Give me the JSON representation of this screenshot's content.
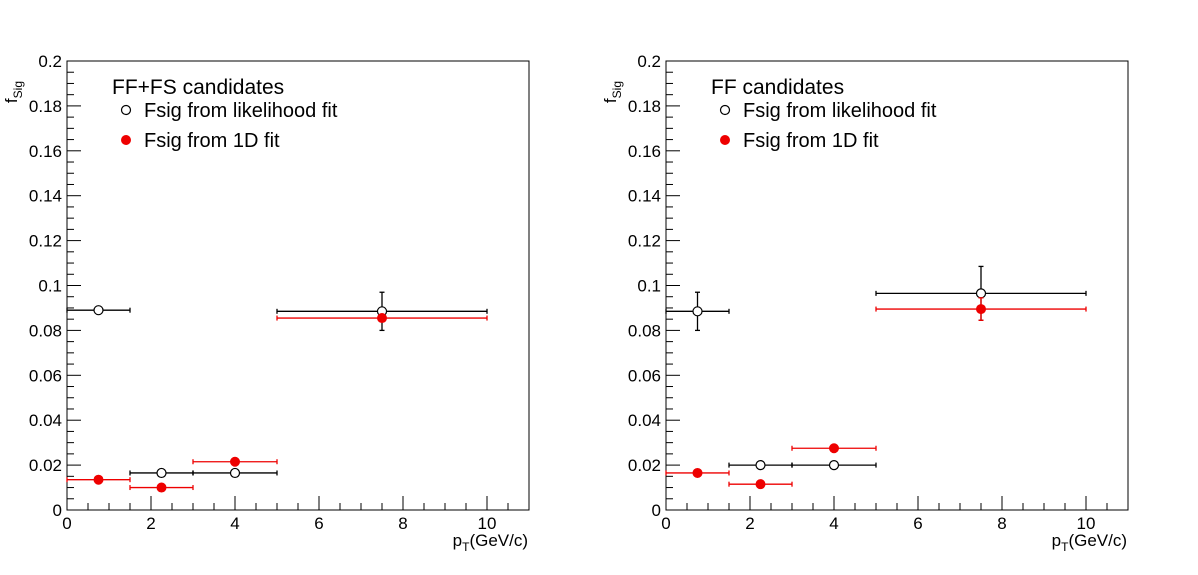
{
  "chart_data": [
    {
      "type": "scatter",
      "title": "FF+FS candidates",
      "xlabel": "p_T(GeV/c)",
      "ylabel": "f_Sig",
      "xlim": [
        0,
        11
      ],
      "ylim": [
        0,
        0.2
      ],
      "x_ticks": [
        "0",
        "2",
        "4",
        "6",
        "8",
        "10"
      ],
      "y_ticks": [
        "0",
        "0.02",
        "0.04",
        "0.06",
        "0.08",
        "0.1",
        "0.12",
        "0.14",
        "0.16",
        "0.18",
        "0.2"
      ],
      "grid": false,
      "legend_position": "top-left",
      "series": [
        {
          "name": "Fsig from likelihood fit",
          "color": "#000000",
          "marker": "open-circle",
          "points": [
            {
              "x": 0.75,
              "xlo": 0,
              "xhi": 1.5,
              "y": 0.089,
              "err": 0
            },
            {
              "x": 2.25,
              "xlo": 1.5,
              "xhi": 3,
              "y": 0.0165,
              "err": 0
            },
            {
              "x": 4,
              "xlo": 3,
              "xhi": 5,
              "y": 0.0165,
              "err": 0
            },
            {
              "x": 7.5,
              "xlo": 5,
              "xhi": 10,
              "y": 0.0885,
              "err": 0.0085
            }
          ]
        },
        {
          "name": "Fsig from 1D fit",
          "color": "#ee0000",
          "marker": "filled-circle",
          "points": [
            {
              "x": 0.75,
              "xlo": 0,
              "xhi": 1.5,
              "y": 0.0135,
              "err": 0
            },
            {
              "x": 2.25,
              "xlo": 1.5,
              "xhi": 3,
              "y": 0.01,
              "err": 0
            },
            {
              "x": 4,
              "xlo": 3,
              "xhi": 5,
              "y": 0.0215,
              "err": 0
            },
            {
              "x": 7.5,
              "xlo": 5,
              "xhi": 10,
              "y": 0.0855,
              "err": 0
            }
          ]
        }
      ]
    },
    {
      "type": "scatter",
      "title": "FF candidates",
      "xlabel": "p_T(GeV/c)",
      "ylabel": "f_Sig",
      "xlim": [
        0,
        11
      ],
      "ylim": [
        0,
        0.2
      ],
      "x_ticks": [
        "0",
        "2",
        "4",
        "6",
        "8",
        "10"
      ],
      "y_ticks": [
        "0",
        "0.02",
        "0.04",
        "0.06",
        "0.08",
        "0.1",
        "0.12",
        "0.14",
        "0.16",
        "0.18",
        "0.2"
      ],
      "grid": false,
      "legend_position": "top-left",
      "series": [
        {
          "name": "Fsig from likelihood fit",
          "color": "#000000",
          "marker": "open-circle",
          "points": [
            {
              "x": 0.75,
              "xlo": 0,
              "xhi": 1.5,
              "y": 0.0885,
              "err": 0.0085
            },
            {
              "x": 2.25,
              "xlo": 1.5,
              "xhi": 3,
              "y": 0.02,
              "err": 0
            },
            {
              "x": 4,
              "xlo": 3,
              "xhi": 5,
              "y": 0.02,
              "err": 0
            },
            {
              "x": 7.5,
              "xlo": 5,
              "xhi": 10,
              "y": 0.0965,
              "err": 0.012
            }
          ]
        },
        {
          "name": "Fsig from 1D fit",
          "color": "#ee0000",
          "marker": "filled-circle",
          "points": [
            {
              "x": 0.75,
              "xlo": 0,
              "xhi": 1.5,
              "y": 0.0165,
              "err": 0
            },
            {
              "x": 2.25,
              "xlo": 1.5,
              "xhi": 3,
              "y": 0.0115,
              "err": 0
            },
            {
              "x": 4,
              "xlo": 3,
              "xhi": 5,
              "y": 0.0275,
              "err": 0
            },
            {
              "x": 7.5,
              "xlo": 5,
              "xhi": 10,
              "y": 0.0895,
              "err": 0.005
            }
          ]
        }
      ]
    }
  ]
}
